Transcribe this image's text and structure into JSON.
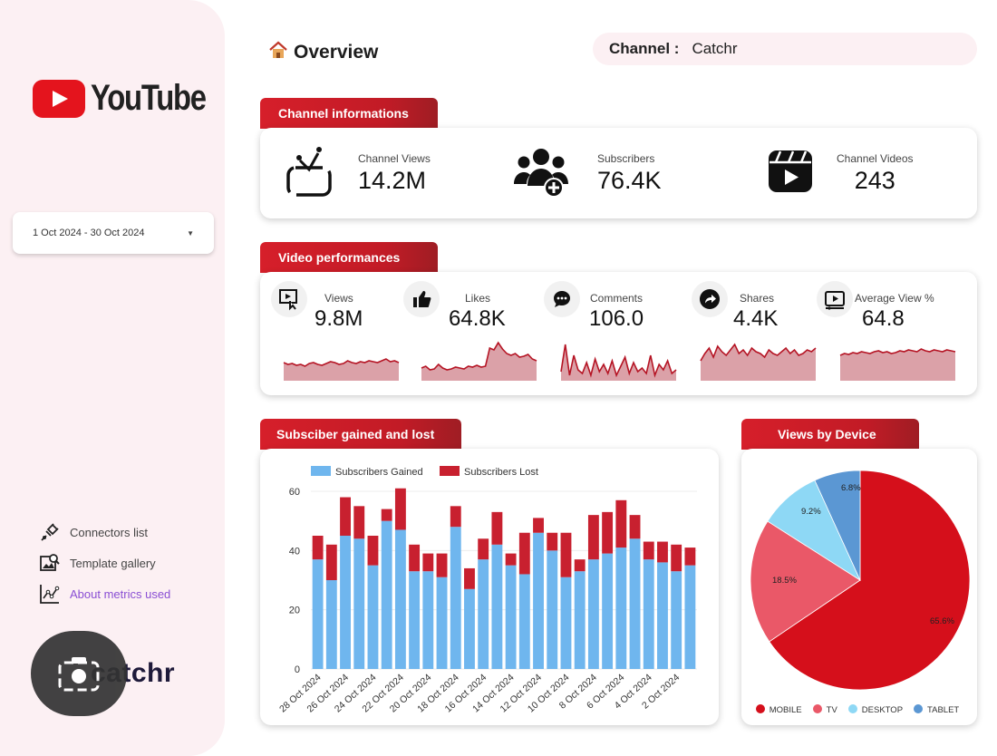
{
  "sidebar": {
    "logo_text": "YouTube",
    "date_range": "1 Oct 2024 - 30 Oct 2024",
    "links": [
      {
        "label": "Connectors list"
      },
      {
        "label": "Template gallery"
      },
      {
        "label": "About metrics used"
      }
    ],
    "brand_text": "catchr"
  },
  "header": {
    "title": "Overview",
    "channel_label": "Channel :",
    "channel_value": "Catchr"
  },
  "channel_info": {
    "title": "Channel informations",
    "items": [
      {
        "label": "Channel Views",
        "value": "14.2M",
        "icon": "tv-icon"
      },
      {
        "label": "Subscribers",
        "value": "76.4K",
        "icon": "users-plus-icon"
      },
      {
        "label": "Channel Videos",
        "value": "243",
        "icon": "video-clapper-icon"
      }
    ]
  },
  "video_perf": {
    "title": "Video performances",
    "items": [
      {
        "label": "Views",
        "value": "9.8M",
        "icon": "views-icon",
        "spark": [
          20,
          18,
          19,
          17,
          18,
          16,
          19,
          20,
          18,
          17,
          19,
          21,
          20,
          18,
          19,
          22,
          20,
          19,
          21,
          20,
          22,
          21,
          20,
          22,
          24,
          21,
          22,
          20
        ]
      },
      {
        "label": "Likes",
        "value": "64.8K",
        "icon": "thumbs-up-icon",
        "spark": [
          14,
          16,
          12,
          13,
          18,
          14,
          12,
          13,
          15,
          14,
          13,
          16,
          15,
          17,
          15,
          16,
          36,
          34,
          42,
          35,
          30,
          28,
          30,
          26,
          27,
          29,
          24,
          22
        ]
      },
      {
        "label": "Comments",
        "value": "106.0",
        "icon": "comments-icon",
        "spark": [
          10,
          40,
          6,
          28,
          12,
          8,
          20,
          6,
          24,
          10,
          18,
          8,
          22,
          6,
          16,
          26,
          8,
          20,
          10,
          14,
          8,
          28,
          6,
          18,
          12,
          22,
          8,
          12
        ]
      },
      {
        "label": "Shares",
        "value": "4.4K",
        "icon": "share-icon",
        "spark": [
          22,
          30,
          36,
          26,
          38,
          32,
          28,
          34,
          40,
          30,
          34,
          28,
          36,
          32,
          30,
          26,
          34,
          30,
          28,
          32,
          36,
          30,
          34,
          28,
          30,
          34,
          32,
          36
        ]
      },
      {
        "label": "Average View %",
        "value": "64.8",
        "icon": "average-view-icon",
        "spark": [
          28,
          30,
          29,
          31,
          30,
          32,
          31,
          30,
          32,
          33,
          31,
          32,
          30,
          31,
          33,
          32,
          34,
          33,
          32,
          35,
          33,
          32,
          34,
          33,
          32,
          34,
          33,
          32
        ]
      }
    ]
  },
  "subs_chart": {
    "title": "Subsciber gained and lost",
    "colors": {
      "gained": "#6fb6ee",
      "lost": "#c8202f"
    }
  },
  "device_chart": {
    "title": "Views by Device",
    "colors": [
      "#d50f1b",
      "#ea5868",
      "#8ed8f5",
      "#5b97d3"
    ]
  },
  "chart_data": [
    {
      "type": "bar",
      "stacked": true,
      "title": "Subsciber gained and lost",
      "categories": [
        "28 Oct 2024",
        "27 Oct 2024",
        "26 Oct 2024",
        "25 Oct 2024",
        "24 Oct 2024",
        "23 Oct 2024",
        "22 Oct 2024",
        "21 Oct 2024",
        "20 Oct 2024",
        "19 Oct 2024",
        "18 Oct 2024",
        "17 Oct 2024",
        "16 Oct 2024",
        "15 Oct 2024",
        "14 Oct 2024",
        "13 Oct 2024",
        "12 Oct 2024",
        "11 Oct 2024",
        "10 Oct 2024",
        "9 Oct 2024",
        "8 Oct 2024",
        "7 Oct 2024",
        "6 Oct 2024",
        "5 Oct 2024",
        "4 Oct 2024",
        "3 Oct 2024",
        "2 Oct 2024",
        "1 Oct 2024"
      ],
      "tick_labels": [
        "28 Oct 2024",
        "26 Oct 2024",
        "24 Oct 2024",
        "22 Oct 2024",
        "20 Oct 2024",
        "18 Oct 2024",
        "16 Oct 2024",
        "14 Oct 2024",
        "12 Oct 2024",
        "10 Oct 2024",
        "8 Oct 2024",
        "6 Oct 2024",
        "4 Oct 2024",
        "2 Oct 2024"
      ],
      "series": [
        {
          "name": "Subscribers Gained",
          "values": [
            37,
            30,
            45,
            44,
            35,
            50,
            47,
            33,
            33,
            31,
            48,
            27,
            37,
            42,
            35,
            32,
            46,
            40,
            31,
            33,
            37,
            39,
            41,
            44,
            37,
            36,
            33,
            35
          ]
        },
        {
          "name": "Subscribers Lost",
          "values": [
            8,
            12,
            13,
            11,
            10,
            4,
            14,
            9,
            6,
            8,
            7,
            7,
            7,
            11,
            4,
            14,
            5,
            6,
            15,
            4,
            15,
            14,
            16,
            8,
            6,
            7,
            9,
            6
          ]
        }
      ],
      "ylim": [
        0,
        60
      ],
      "yticks": [
        0,
        20,
        40,
        60
      ],
      "legend": "top"
    },
    {
      "type": "pie",
      "title": "Views by Device",
      "labels": [
        "MOBILE",
        "TV",
        "DESKTOP",
        "TABLET"
      ],
      "values": [
        65.6,
        18.5,
        9.2,
        6.8
      ],
      "value_labels": [
        "65.6%",
        "18.5%",
        "9.2%",
        "6.8%"
      ],
      "legend": "bottom"
    }
  ]
}
